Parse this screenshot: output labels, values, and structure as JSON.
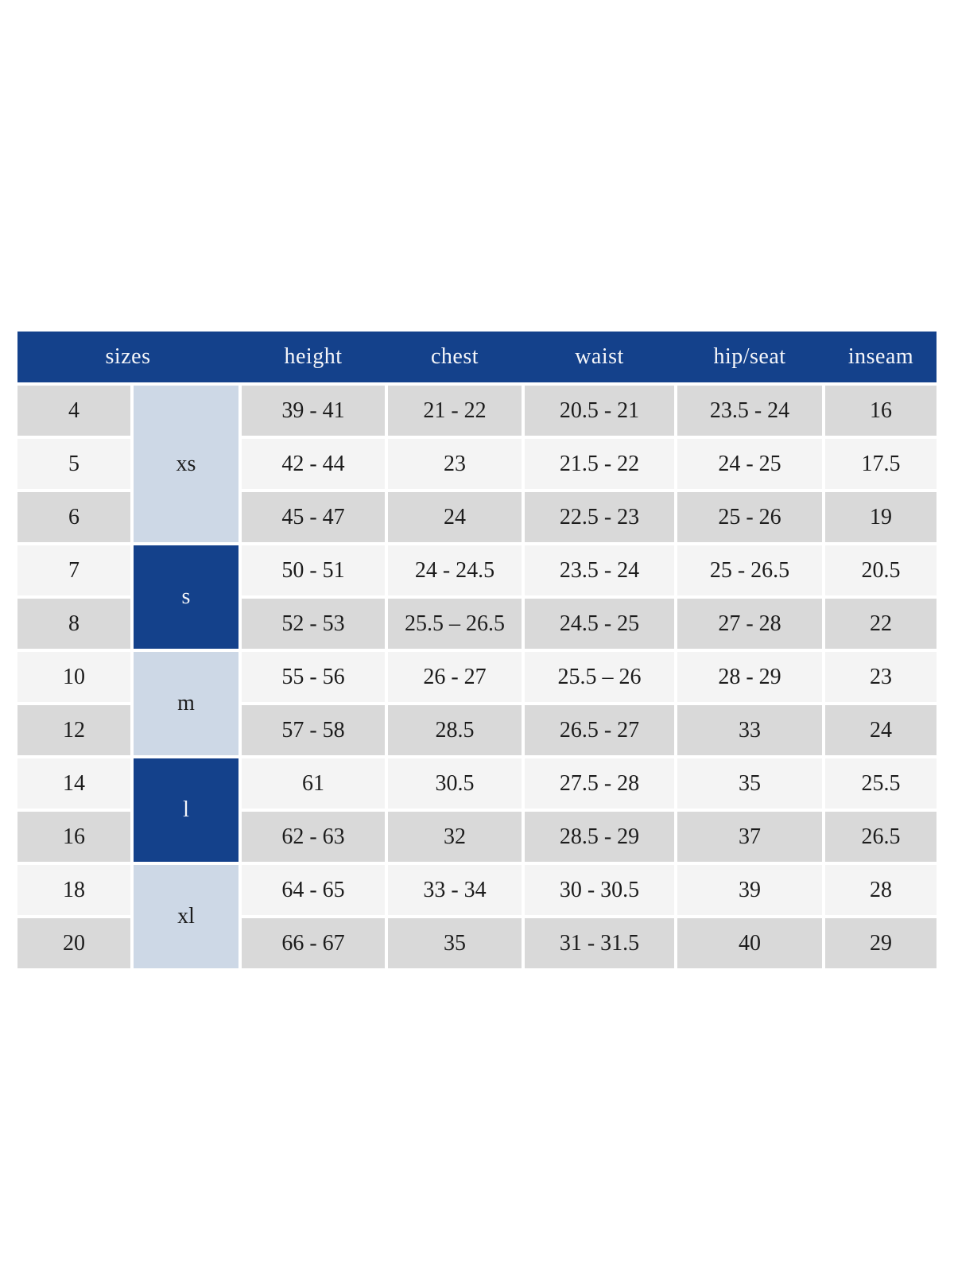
{
  "chart_data": {
    "type": "table",
    "columns": [
      "sizes",
      "height",
      "chest",
      "waist",
      "hip/seat",
      "inseam"
    ],
    "size_groups": [
      {
        "label": "xs",
        "sizes": [
          "4",
          "5",
          "6"
        ],
        "row_span": 3,
        "shade": "light-blue"
      },
      {
        "label": "s",
        "sizes": [
          "7",
          "8"
        ],
        "row_span": 2,
        "shade": "dark-blue"
      },
      {
        "label": "m",
        "sizes": [
          "10",
          "12"
        ],
        "row_span": 2,
        "shade": "light-blue"
      },
      {
        "label": "l",
        "sizes": [
          "14",
          "16"
        ],
        "row_span": 2,
        "shade": "dark-blue"
      },
      {
        "label": "xl",
        "sizes": [
          "18",
          "20"
        ],
        "row_span": 2,
        "shade": "light-blue"
      }
    ],
    "rows": [
      {
        "size": "4",
        "height": "39 - 41",
        "chest": "21 - 22",
        "waist": "20.5 - 21",
        "hip_seat": "23.5 - 24",
        "inseam": "16"
      },
      {
        "size": "5",
        "height": "42 - 44",
        "chest": "23",
        "waist": "21.5 - 22",
        "hip_seat": "24 - 25",
        "inseam": "17.5"
      },
      {
        "size": "6",
        "height": "45 - 47",
        "chest": "24",
        "waist": "22.5 - 23",
        "hip_seat": "25 - 26",
        "inseam": "19"
      },
      {
        "size": "7",
        "height": "50 - 51",
        "chest": "24 - 24.5",
        "waist": "23.5 - 24",
        "hip_seat": "25 - 26.5",
        "inseam": "20.5"
      },
      {
        "size": "8",
        "height": "52 - 53",
        "chest": "25.5 – 26.5",
        "waist": "24.5 - 25",
        "hip_seat": "27 - 28",
        "inseam": "22"
      },
      {
        "size": "10",
        "height": "55 - 56",
        "chest": "26 - 27",
        "waist": "25.5 – 26",
        "hip_seat": "28 - 29",
        "inseam": "23"
      },
      {
        "size": "12",
        "height": "57 - 58",
        "chest": "28.5",
        "waist": "26.5 - 27",
        "hip_seat": "33",
        "inseam": "24"
      },
      {
        "size": "14",
        "height": "61",
        "chest": "30.5",
        "waist": "27.5 - 28",
        "hip_seat": "35",
        "inseam": "25.5"
      },
      {
        "size": "16",
        "height": "62 - 63",
        "chest": "32",
        "waist": "28.5 - 29",
        "hip_seat": "37",
        "inseam": "26.5"
      },
      {
        "size": "18",
        "height": "64 - 65",
        "chest": "33 - 34",
        "waist": "30 - 30.5",
        "hip_seat": "39",
        "inseam": "28"
      },
      {
        "size": "20",
        "height": "66 - 67",
        "chest": "35",
        "waist": "31 - 31.5",
        "hip_seat": "40",
        "inseam": "29"
      }
    ],
    "colors": {
      "header_background": "#14418b",
      "group_dark_blue": "#14418b",
      "group_light_blue": "#cdd8e6",
      "row_gray": "#d9d9d9",
      "row_light": "#f4f4f4",
      "header_text": "#f5f6fa",
      "body_text": "#1c1c1c"
    },
    "layout": {
      "grid": "off",
      "legend": "none"
    }
  }
}
